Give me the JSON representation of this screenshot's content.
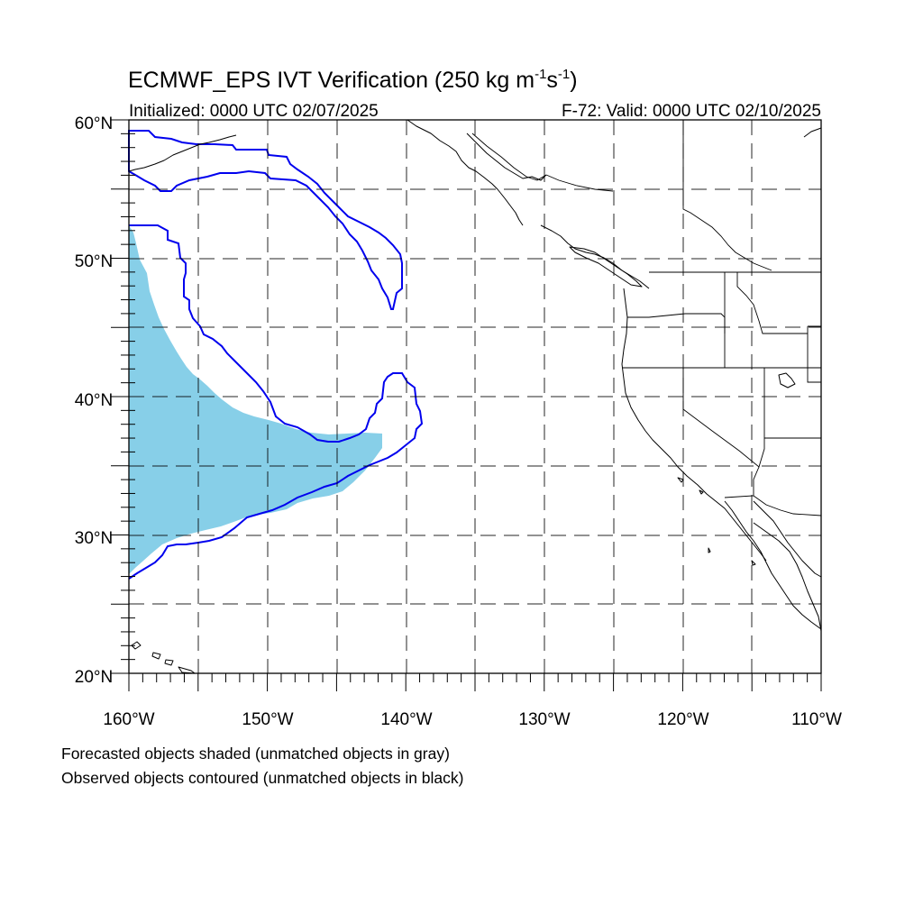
{
  "title": {
    "main": "ECMWF_EPS IVT Verification (250 kg m",
    "sup1": "-1",
    "mid": "s",
    "sup2": "-1",
    "end": ")"
  },
  "initialized": "Initialized: 0000 UTC 02/07/2025",
  "valid": "F-72: Valid: 0000 UTC 02/10/2025",
  "map": {
    "lon_range": [
      -160,
      -110
    ],
    "lat_range": [
      20,
      60
    ],
    "lat_labels": [
      "20°N",
      "30°N",
      "40°N",
      "50°N",
      "60°N"
    ],
    "lon_labels": [
      "160°W",
      "150°W",
      "140°W",
      "130°W",
      "120°W",
      "110°W"
    ],
    "gridlines": "dashed, every 5 degrees",
    "forecast_object_color": "#87cfe8",
    "observed_object_color": "#0000ee"
  },
  "legend": {
    "line1": "Forecasted objects shaded (unmatched objects in gray)",
    "line2": "Observed objects contoured (unmatched objects in black)"
  }
}
